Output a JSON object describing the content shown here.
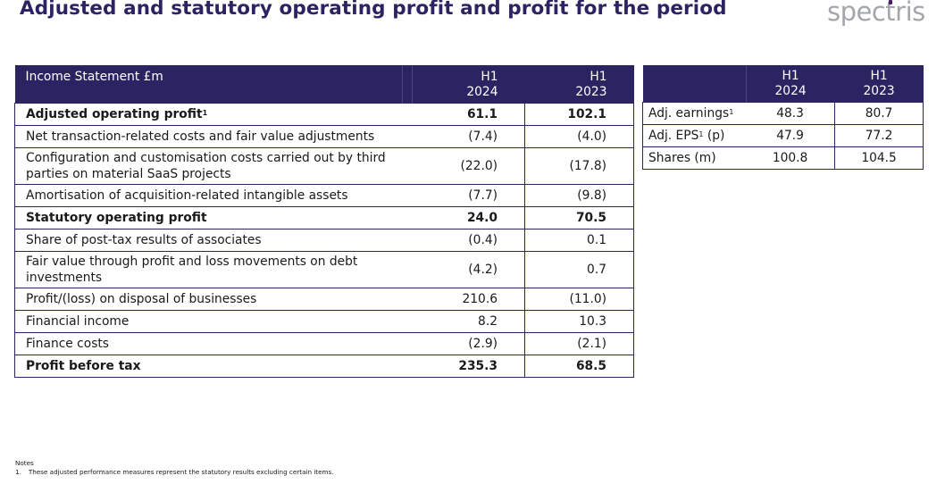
{
  "title": "Adjusted and statutory operating profit and profit for the period",
  "logo": "spectris",
  "income_table": {
    "header": {
      "label": "Income Statement £m",
      "col1": [
        "H1",
        "2024"
      ],
      "col2": [
        "H1",
        "2023"
      ]
    },
    "rows": [
      {
        "label": "Adjusted operating profit",
        "sup": "1",
        "h1_2024": "61.1",
        "h1_2023": "102.1",
        "bold": true
      },
      {
        "label": "Net transaction-related costs and fair value adjustments",
        "h1_2024": "(7.4)",
        "h1_2023": "(4.0)"
      },
      {
        "label": "Configuration and customisation costs carried out by third parties on material SaaS projects",
        "h1_2024": "(22.0)",
        "h1_2023": "(17.8)"
      },
      {
        "label": "Amortisation of acquisition-related intangible assets",
        "h1_2024": "(7.7)",
        "h1_2023": "(9.8)"
      },
      {
        "label": "Statutory operating profit",
        "h1_2024": "24.0",
        "h1_2023": "70.5",
        "bold": true
      },
      {
        "label": "Share of post-tax results of associates",
        "h1_2024": "(0.4)",
        "h1_2023": "0.1"
      },
      {
        "label": "Fair value through profit and loss movements on debt investments",
        "h1_2024": "(4.2)",
        "h1_2023": "0.7"
      },
      {
        "label": "Profit/(loss) on disposal of businesses",
        "h1_2024": "210.6",
        "h1_2023": "(11.0)"
      },
      {
        "label": "Financial income",
        "h1_2024": "8.2",
        "h1_2023": "10.3"
      },
      {
        "label": "Finance costs",
        "h1_2024": "(2.9)",
        "h1_2023": "(2.1)"
      },
      {
        "label": "Profit before tax",
        "h1_2024": "235.3",
        "h1_2023": "68.5",
        "bold": true
      }
    ]
  },
  "eps_table": {
    "header": {
      "col1": [
        "H1",
        "2024"
      ],
      "col2": [
        "H1",
        "2023"
      ]
    },
    "rows": [
      {
        "label": "Adj. earnings",
        "sup": "1",
        "suffix": "",
        "h1_2024": "48.3",
        "h1_2023": "80.7"
      },
      {
        "label": "Adj. EPS",
        "sup": "1",
        "suffix": " (p)",
        "h1_2024": "47.9",
        "h1_2023": "77.2"
      },
      {
        "label": "Shares (m)",
        "sup": "",
        "suffix": "",
        "h1_2024": "100.8",
        "h1_2023": "104.5"
      }
    ]
  },
  "notes": {
    "heading": "Notes",
    "items": [
      {
        "num": "1.",
        "text": "These adjusted performance measures represent the statutory results excluding certain items."
      }
    ]
  },
  "colors": {
    "primary": "#2c2462",
    "logo_text": "#a4a7aa",
    "logo_accent": "#4a1b6b"
  }
}
